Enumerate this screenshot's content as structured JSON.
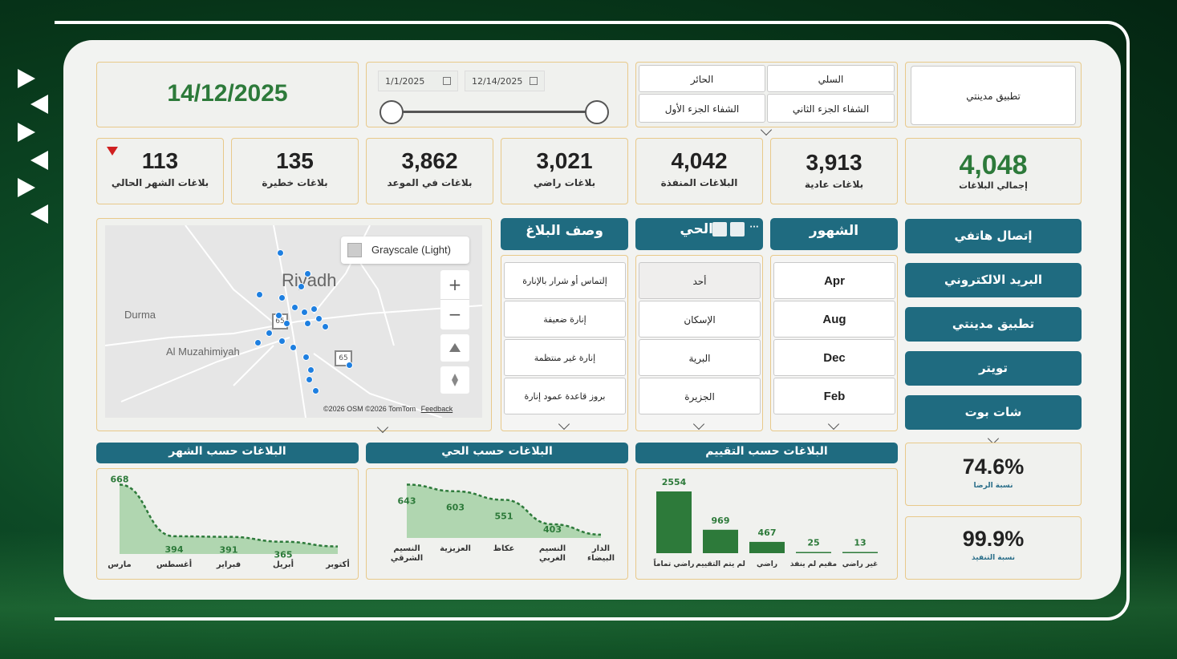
{
  "date_display": "14/12/2025",
  "date_range": {
    "start": "1/1/2025",
    "end": "12/14/2025"
  },
  "platform_filter": {
    "selected": "تطبيق مدينتي"
  },
  "district_filter": {
    "items": [
      "السلي",
      "الحائر",
      "الشفاء الجزء الثاني",
      "الشفاء الجزء الأول"
    ]
  },
  "kpis": [
    {
      "value": "4,048",
      "label": "إجمالي البلاغات",
      "color": "#2d7a3a"
    },
    {
      "value": "3,913",
      "label": "بلاغات عادية"
    },
    {
      "value": "4,042",
      "label": "البلاغات المنفذة"
    },
    {
      "value": "3,021",
      "label": "بلاغات راضي"
    },
    {
      "value": "3,862",
      "label": "بلاغات في الموعد"
    },
    {
      "value": "135",
      "label": "بلاغات خطيرة"
    },
    {
      "value": "113",
      "label": "بلاغات الشهر الحالي",
      "trend": "down"
    }
  ],
  "channels": [
    "إتصال هاتفي",
    "البريد الالكتروني",
    "تطبيق مدينتي",
    "تويتر",
    "شات بوت"
  ],
  "months_slicer": {
    "title": "الشهور",
    "items": [
      "Apr",
      "Aug",
      "Dec",
      "Feb"
    ]
  },
  "district_slicer": {
    "title": "الحي",
    "items": [
      "أحد",
      "الإسكان",
      "البرية",
      "الجزيرة"
    ]
  },
  "description_slicer": {
    "title": "وصف البلاغ",
    "items": [
      "إلتماس أو شرار بالإنارة",
      "إنارة ضعيفة",
      "إنارة غير منتظمة",
      "بروز قاعدة عمود إنارة"
    ]
  },
  "map": {
    "style_label": "Grayscale (Light)",
    "places": [
      "Riyadh",
      "Durma",
      "Al Muzahimiyah"
    ],
    "road_shields": [
      "65",
      "65"
    ],
    "attribution": "©2026 OSM  ©2026 TomTom",
    "feedback": "Feedback",
    "zoom_in": "+",
    "zoom_out": "−"
  },
  "satisfaction": {
    "value": "74.6%",
    "label": "نسبة الرضا"
  },
  "execution": {
    "value": "99.9%",
    "label": "نسبة التنفيذ"
  },
  "chart_data": [
    {
      "type": "area",
      "title": "البلاغات حسب الشهر",
      "categories": [
        "مارس",
        "أغسطس",
        "فبراير",
        "أبريل",
        "أكتوبر"
      ],
      "values": [
        668,
        394,
        391,
        365,
        340
      ],
      "data_labels": [
        "668",
        "394",
        "391",
        "365",
        ""
      ],
      "color": "#2d7a3a"
    },
    {
      "type": "area",
      "title": "البلاغات حسب الحي",
      "categories": [
        "النسيم الشرقي",
        "العزيزية",
        "عكاظ",
        "النسيم الغربي",
        "الدار البيضاء"
      ],
      "values": [
        643,
        603,
        551,
        403,
        340
      ],
      "data_labels": [
        "643",
        "603",
        "551",
        "403",
        ""
      ],
      "color": "#2d7a3a"
    },
    {
      "type": "bar",
      "title": "البلاغات حسب التقييم",
      "categories": [
        "راضي تماماً",
        "لم يتم التقييم",
        "راضي",
        "مقيم لم ينفذ",
        "غير راضي"
      ],
      "values": [
        2554,
        969,
        467,
        25,
        13
      ],
      "color": "#2d7a3a"
    }
  ]
}
